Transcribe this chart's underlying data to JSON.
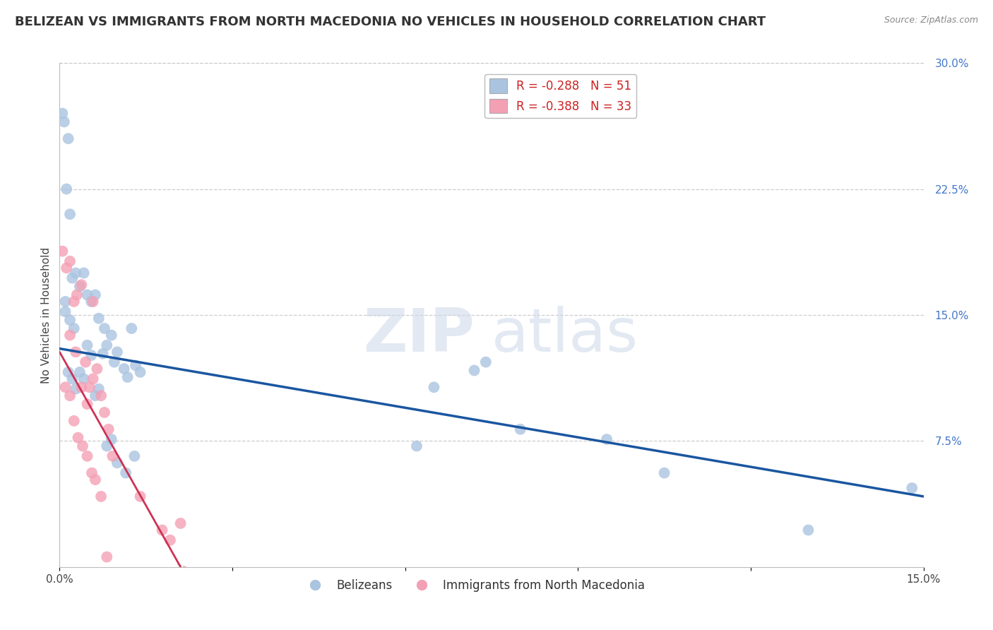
{
  "title": "BELIZEAN VS IMMIGRANTS FROM NORTH MACEDONIA NO VEHICLES IN HOUSEHOLD CORRELATION CHART",
  "source": "Source: ZipAtlas.com",
  "ylabel": "No Vehicles in Household",
  "watermark_zip": "ZIP",
  "watermark_atlas": "atlas",
  "xlim": [
    0.0,
    0.15
  ],
  "ylim": [
    0.0,
    0.3
  ],
  "xtick_positions": [
    0.0,
    0.03,
    0.06,
    0.09,
    0.12,
    0.15
  ],
  "xtick_labels": [
    "0.0%",
    "",
    "",
    "",
    "",
    "15.0%"
  ],
  "yticks_right": [
    0.075,
    0.15,
    0.225,
    0.3
  ],
  "ytick_right_labels": [
    "7.5%",
    "15.0%",
    "22.5%",
    "30.0%"
  ],
  "blue_color": "#aac4e0",
  "blue_line_color": "#1a56a0",
  "pink_color": "#f4a0b4",
  "pink_line_color": "#cc3355",
  "blue_scatter_x": [
    0.0008,
    0.0015,
    0.0005,
    0.0012,
    0.001,
    0.0018,
    0.0022,
    0.0028,
    0.0035,
    0.0042,
    0.0048,
    0.0055,
    0.0062,
    0.0068,
    0.0075,
    0.0082,
    0.009,
    0.0095,
    0.01,
    0.0112,
    0.0118,
    0.0125,
    0.0132,
    0.014,
    0.0015,
    0.0022,
    0.0028,
    0.0035,
    0.0042,
    0.0048,
    0.0055,
    0.0062,
    0.0068,
    0.0082,
    0.009,
    0.01,
    0.0115,
    0.013,
    0.065,
    0.072,
    0.08,
    0.095,
    0.105,
    0.074,
    0.062,
    0.0025,
    0.0018,
    0.001,
    0.0078,
    0.13,
    0.148
  ],
  "blue_scatter_y": [
    0.265,
    0.255,
    0.27,
    0.225,
    0.158,
    0.21,
    0.172,
    0.175,
    0.167,
    0.175,
    0.162,
    0.158,
    0.162,
    0.148,
    0.127,
    0.132,
    0.138,
    0.122,
    0.128,
    0.118,
    0.113,
    0.142,
    0.12,
    0.116,
    0.116,
    0.112,
    0.106,
    0.116,
    0.112,
    0.132,
    0.126,
    0.102,
    0.106,
    0.072,
    0.076,
    0.062,
    0.056,
    0.066,
    0.107,
    0.117,
    0.082,
    0.076,
    0.056,
    0.122,
    0.072,
    0.142,
    0.147,
    0.152,
    0.142,
    0.022,
    0.047
  ],
  "pink_scatter_x": [
    0.0005,
    0.0012,
    0.0018,
    0.0025,
    0.003,
    0.0038,
    0.0045,
    0.0052,
    0.0058,
    0.0065,
    0.0072,
    0.0078,
    0.0085,
    0.0092,
    0.0018,
    0.0028,
    0.0038,
    0.0048,
    0.001,
    0.0018,
    0.0025,
    0.0032,
    0.004,
    0.0048,
    0.0056,
    0.0062,
    0.0072,
    0.0058,
    0.0178,
    0.0192,
    0.021,
    0.014,
    0.0082
  ],
  "pink_scatter_y": [
    0.188,
    0.178,
    0.182,
    0.158,
    0.162,
    0.168,
    0.122,
    0.107,
    0.112,
    0.118,
    0.102,
    0.092,
    0.082,
    0.066,
    0.138,
    0.128,
    0.107,
    0.097,
    0.107,
    0.102,
    0.087,
    0.077,
    0.072,
    0.066,
    0.056,
    0.052,
    0.042,
    0.158,
    0.022,
    0.016,
    0.026,
    0.042,
    0.006
  ],
  "blue_line_x0": 0.0,
  "blue_line_x1": 0.15,
  "blue_line_y0": 0.13,
  "blue_line_y1": 0.042,
  "pink_line_x0": 0.0,
  "pink_line_x1": 0.0215,
  "pink_line_y0": 0.128,
  "pink_line_y1": -0.003,
  "legend_blue_label": "R = -0.288   N = 51",
  "legend_pink_label": "R = -0.388   N = 33",
  "legend_belizeans": "Belizeans",
  "legend_macedonian": "Immigrants from North Macedonia",
  "background_color": "#ffffff",
  "grid_color": "#c8c8c8",
  "title_fontsize": 13,
  "axis_label_fontsize": 11,
  "tick_fontsize": 11,
  "right_tick_color": "#4477cc"
}
